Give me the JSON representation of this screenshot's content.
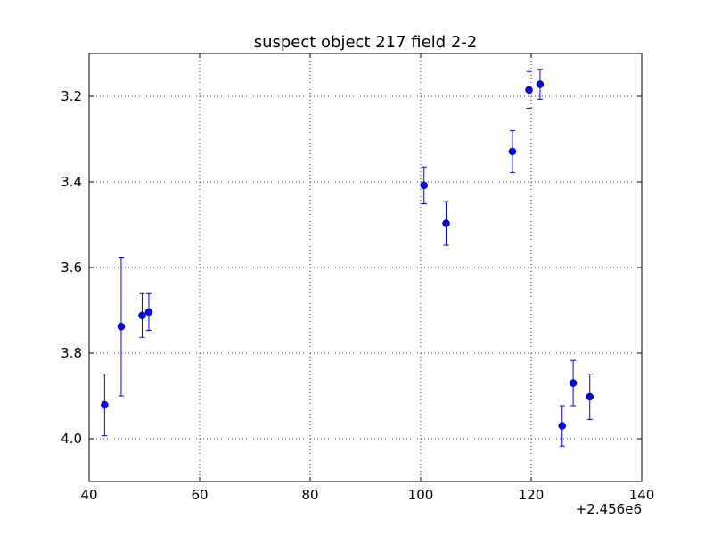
{
  "chart_data": {
    "type": "scatter",
    "title": "suspect object 217 field 2-2",
    "xlabel": "",
    "ylabel": "",
    "x_offset_label": "+2.456e6",
    "xlim": [
      40,
      140
    ],
    "ylim": [
      4.1,
      3.1
    ],
    "y_inverted": true,
    "x_ticks": [
      40,
      60,
      80,
      100,
      120,
      140
    ],
    "y_ticks": [
      3.2,
      3.4,
      3.6,
      3.8,
      4.0
    ],
    "x_tick_labels": [
      "40",
      "60",
      "80",
      "100",
      "120",
      "140"
    ],
    "y_tick_labels": [
      "3.2",
      "3.4",
      "3.6",
      "3.8",
      "4.0"
    ],
    "grid": true,
    "legend": false,
    "marker_color": "#0000ff",
    "points": [
      {
        "x": 42.8,
        "y": 3.921,
        "err": 0.072
      },
      {
        "x": 45.8,
        "y": 3.738,
        "err": 0.162
      },
      {
        "x": 49.6,
        "y": 3.712,
        "err": 0.051
      },
      {
        "x": 50.8,
        "y": 3.704,
        "err": 0.043
      },
      {
        "x": 100.6,
        "y": 3.408,
        "err": 0.043
      },
      {
        "x": 104.6,
        "y": 3.497,
        "err": 0.051
      },
      {
        "x": 116.6,
        "y": 3.329,
        "err": 0.049
      },
      {
        "x": 119.6,
        "y": 3.185,
        "err": 0.043
      },
      {
        "x": 121.6,
        "y": 3.172,
        "err": 0.035
      },
      {
        "x": 125.6,
        "y": 3.97,
        "err": 0.047
      },
      {
        "x": 127.6,
        "y": 3.87,
        "err": 0.053
      },
      {
        "x": 130.6,
        "y": 3.902,
        "err": 0.053
      }
    ]
  }
}
